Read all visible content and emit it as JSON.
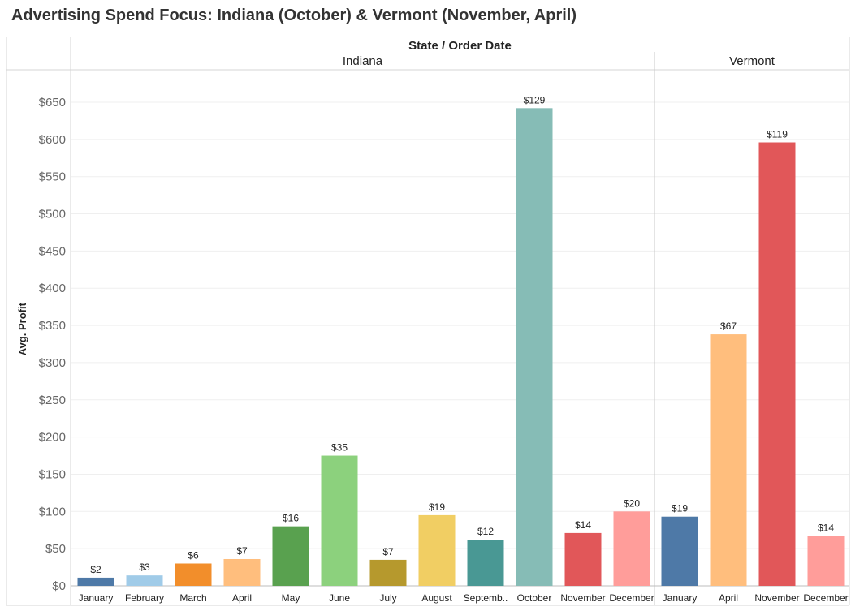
{
  "title": "Advertising Spend Focus: Indiana (October) & Vermont (November, April)",
  "header": "State / Order Date",
  "chart_data": {
    "type": "bar",
    "title": "Advertising Spend Focus: Indiana (October) & Vermont (November, April)",
    "column_header": "State / Order Date",
    "ylabel": "Avg. Profit",
    "ylim": [
      0,
      690
    ],
    "yticks": [
      0,
      50,
      100,
      150,
      200,
      250,
      300,
      350,
      400,
      450,
      500,
      550,
      600,
      650
    ],
    "ytick_labels": [
      "$0",
      "$50",
      "$100",
      "$150",
      "$200",
      "$250",
      "$300",
      "$350",
      "$400",
      "$450",
      "$500",
      "$550",
      "$600",
      "$650"
    ],
    "grid": true,
    "panes": [
      {
        "name": "Indiana",
        "categories": [
          "January",
          "February",
          "March",
          "April",
          "May",
          "June",
          "July",
          "August",
          "Septemb..",
          "October",
          "November",
          "December"
        ],
        "values": [
          11,
          14,
          30,
          36,
          80,
          175,
          35,
          95,
          62,
          642,
          71,
          100
        ],
        "labels": [
          "$2",
          "$3",
          "$6",
          "$7",
          "$16",
          "$35",
          "$7",
          "$19",
          "$12",
          "$129",
          "$14",
          "$20"
        ],
        "colors": [
          "#4e79a7",
          "#a0cbe8",
          "#f28e2b",
          "#ffbe7d",
          "#59a14f",
          "#8cd17d",
          "#b6992d",
          "#f1ce63",
          "#499894",
          "#86bcb6",
          "#e15759",
          "#ff9d9a"
        ]
      },
      {
        "name": "Vermont",
        "categories": [
          "January",
          "April",
          "November",
          "December"
        ],
        "values": [
          93,
          338,
          596,
          67
        ],
        "labels": [
          "$19",
          "$67",
          "$119",
          "$14"
        ],
        "colors": [
          "#4e79a7",
          "#ffbe7d",
          "#e15759",
          "#ff9d9a"
        ]
      }
    ]
  }
}
